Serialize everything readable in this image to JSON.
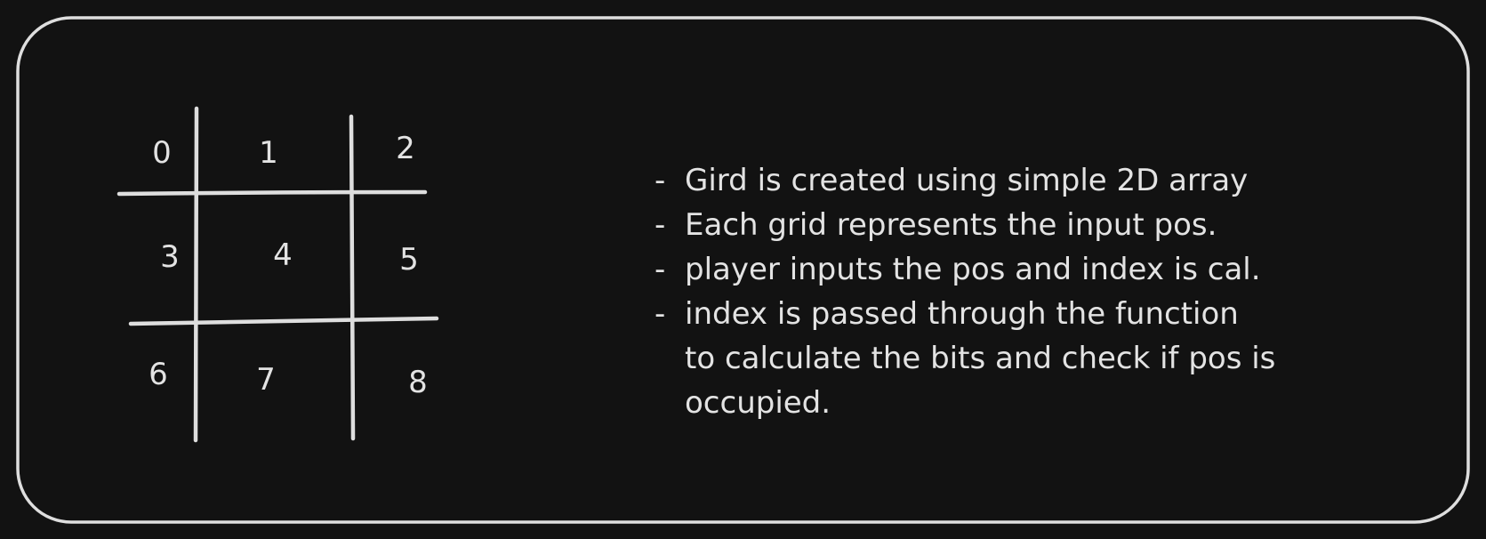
{
  "grid": {
    "cells": [
      "0",
      "1",
      "2",
      "3",
      "4",
      "5",
      "6",
      "7",
      "8"
    ]
  },
  "notes": {
    "bullet": "-",
    "items": [
      "Gird is created using simple 2D array",
      "Each grid represents the input pos.",
      "player inputs the pos and index is cal.",
      "index is passed through the function\nto calculate the bits and check if pos is\noccupied."
    ]
  },
  "colors": {
    "background": "#121212",
    "stroke": "#dedede"
  }
}
